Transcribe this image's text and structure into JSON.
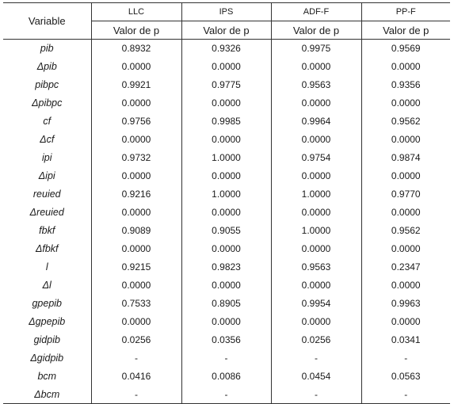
{
  "table": {
    "variable_header": "Variable",
    "tests": [
      "LLC",
      "IPS",
      "ADF-F",
      "PP-F"
    ],
    "subheader": "Valor de p",
    "rows": [
      {
        "variable": "pib",
        "values": [
          "0.8932",
          "0.9326",
          "0.9975",
          "0.9569"
        ]
      },
      {
        "variable": "Δpib",
        "values": [
          "0.0000",
          "0.0000",
          "0.0000",
          "0.0000"
        ]
      },
      {
        "variable": "pibpc",
        "values": [
          "0.9921",
          "0.9775",
          "0.9563",
          "0.9356"
        ]
      },
      {
        "variable": "Δpibpc",
        "values": [
          "0.0000",
          "0.0000",
          "0.0000",
          "0.0000"
        ]
      },
      {
        "variable": "cf",
        "values": [
          "0.9756",
          "0.9985",
          "0.9964",
          "0.9562"
        ]
      },
      {
        "variable": "Δcf",
        "values": [
          "0.0000",
          "0.0000",
          "0.0000",
          "0.0000"
        ]
      },
      {
        "variable": "ipi",
        "values": [
          "0.9732",
          "1.0000",
          "0.9754",
          "0.9874"
        ]
      },
      {
        "variable": "Δipi",
        "values": [
          "0.0000",
          "0.0000",
          "0.0000",
          "0.0000"
        ]
      },
      {
        "variable": "reuied",
        "values": [
          "0.9216",
          "1.0000",
          "1.0000",
          "0.9770"
        ]
      },
      {
        "variable": "Δreuied",
        "values": [
          "0.0000",
          "0.0000",
          "0.0000",
          "0.0000"
        ]
      },
      {
        "variable": "fbkf",
        "values": [
          "0.9089",
          "0.9055",
          "1.0000",
          "0.9562"
        ]
      },
      {
        "variable": "Δfbkf",
        "values": [
          "0.0000",
          "0.0000",
          "0.0000",
          "0.0000"
        ]
      },
      {
        "variable": "l",
        "values": [
          "0.9215",
          "0.9823",
          "0.9563",
          "0.2347"
        ]
      },
      {
        "variable": "Δl",
        "values": [
          "0.0000",
          "0.0000",
          "0.0000",
          "0.0000"
        ]
      },
      {
        "variable": "gpepib",
        "values": [
          "0.7533",
          "0.8905",
          "0.9954",
          "0.9963"
        ]
      },
      {
        "variable": "Δgpepib",
        "values": [
          "0.0000",
          "0.0000",
          "0.0000",
          "0.0000"
        ]
      },
      {
        "variable": "gidpib",
        "values": [
          "0.0256",
          "0.0356",
          "0.0256",
          "0.0341"
        ]
      },
      {
        "variable": "Δgidpib",
        "values": [
          "-",
          "-",
          "-",
          "-"
        ]
      },
      {
        "variable": "bcm",
        "values": [
          "0.0416",
          "0.0086",
          "0.0454",
          "0.0563"
        ]
      },
      {
        "variable": "Δbcm",
        "values": [
          "-",
          "-",
          "-",
          "-"
        ]
      }
    ]
  }
}
